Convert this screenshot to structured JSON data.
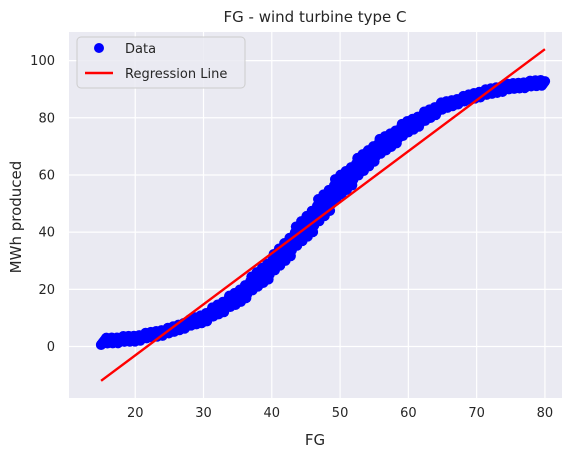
{
  "chart_data": {
    "type": "scatter",
    "title": "FG - wind turbine type C",
    "xlabel": "FG",
    "ylabel": "MWh produced",
    "xlim": [
      10.3,
      82.5
    ],
    "ylim": [
      -18,
      110
    ],
    "xticks": [
      20,
      30,
      40,
      50,
      60,
      70,
      80
    ],
    "yticks": [
      0,
      20,
      40,
      60,
      80,
      100
    ],
    "grid": true,
    "legend_position": "top-left",
    "series": [
      {
        "name": "Data",
        "kind": "points",
        "color": "#0000ff",
        "curve": "sigmoid",
        "x_range": [
          15,
          80
        ],
        "approx_points": [
          [
            15,
            1.8
          ],
          [
            20,
            2.8
          ],
          [
            25,
            5.5
          ],
          [
            30,
            10
          ],
          [
            35,
            17
          ],
          [
            40,
            28
          ],
          [
            45,
            42
          ],
          [
            50,
            56
          ],
          [
            55,
            68
          ],
          [
            60,
            77
          ],
          [
            65,
            84
          ],
          [
            70,
            88
          ],
          [
            75,
            91
          ],
          [
            80,
            92.5
          ]
        ]
      },
      {
        "name": "Regression Line",
        "kind": "line",
        "color": "#ff0000",
        "x": [
          15,
          80
        ],
        "y": [
          -12,
          104
        ]
      }
    ]
  },
  "colors": {
    "plot_background": "#eaeaf2",
    "grid": "#ffffff",
    "data": "#0000ff",
    "regression": "#ff0000"
  }
}
